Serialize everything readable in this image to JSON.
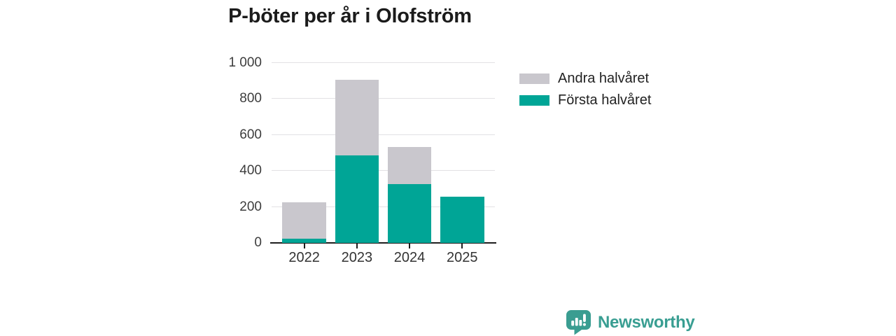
{
  "title": "P-böter per år i Olofström",
  "legend": {
    "items": [
      {
        "label": "Andra halvåret",
        "color": "#c9c7cd"
      },
      {
        "label": "Första halvåret",
        "color": "#00a596"
      }
    ]
  },
  "brand": {
    "name": "Newsworthy",
    "icon": "bar-chart-speech-bubble-icon"
  },
  "colors": {
    "first_half": "#00a596",
    "second_half": "#c9c7cd",
    "grid": "#e2e1e4",
    "axis": "#1e1e1e",
    "tick_text": "#3d3d3d",
    "title_text": "#1b1b1b",
    "brand_teal": "#399e92"
  },
  "chart_data": {
    "type": "bar",
    "stacked": true,
    "title": "P-böter per år i Olofström",
    "categories": [
      "2022",
      "2023",
      "2024",
      "2025"
    ],
    "series": [
      {
        "name": "Första halvåret",
        "color": "#00a596",
        "values": [
          25,
          485,
          325,
          255
        ]
      },
      {
        "name": "Andra halvåret",
        "color": "#c9c7cd",
        "values": [
          200,
          420,
          210,
          0
        ]
      }
    ],
    "totals": [
      225,
      905,
      535,
      255
    ],
    "xlabel": "",
    "ylabel": "",
    "ylim": [
      0,
      1000
    ],
    "yticks": [
      0,
      200,
      400,
      600,
      800,
      1000
    ],
    "ytick_labels": [
      "0",
      "200",
      "400",
      "600",
      "800",
      "1 000"
    ],
    "grid": true,
    "legend_position": "upper-right"
  }
}
